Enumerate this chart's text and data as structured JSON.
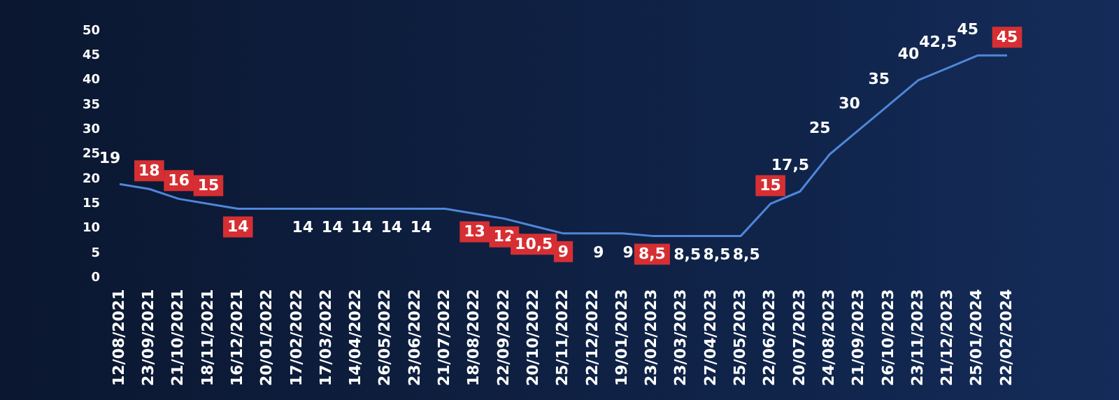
{
  "chart_data": {
    "type": "line",
    "categories": [
      "12/08/2021",
      "23/09/2021",
      "21/10/2021",
      "18/11/2021",
      "16/12/2021",
      "20/01/2022",
      "17/02/2022",
      "17/03/2022",
      "14/04/2022",
      "26/05/2022",
      "23/06/2022",
      "21/07/2022",
      "18/08/2022",
      "22/09/2022",
      "20/10/2022",
      "25/11/2022",
      "22/12/2022",
      "19/01/2023",
      "23/02/2023",
      "23/03/2023",
      "27/04/2023",
      "25/05/2023",
      "22/06/2023",
      "20/07/2023",
      "24/08/2023",
      "21/09/2023",
      "26/10/2023",
      "23/11/2023",
      "21/12/2023",
      "25/01/2024",
      "22/02/2024"
    ],
    "series": [
      {
        "color": "#4f86d9",
        "values": [
          19,
          18,
          16,
          15,
          14,
          14,
          14,
          14,
          14,
          14,
          14,
          14,
          13,
          12,
          10.5,
          9,
          9,
          9,
          8.5,
          8.5,
          8.5,
          8.5,
          15,
          17.5,
          25,
          30,
          35,
          40,
          42.5,
          45,
          45
        ],
        "value_labels": [
          "19",
          null,
          null,
          null,
          null,
          null,
          "14",
          "14",
          "14",
          "14",
          "14",
          null,
          null,
          null,
          null,
          null,
          "9",
          "9",
          null,
          "8,5",
          "8,5",
          "8,5",
          null,
          "17,5",
          "25",
          "30",
          "35",
          "40",
          "42,5",
          "45",
          null
        ]
      }
    ],
    "annotations": [
      {
        "text": "18",
        "x": "23/09/2021",
        "y": 18
      },
      {
        "text": "16",
        "x": "21/10/2021",
        "y": 16
      },
      {
        "text": "15",
        "x": "18/11/2021",
        "y": 15
      },
      {
        "text": "14",
        "x": "16/12/2021",
        "y": 14
      },
      {
        "text": "13",
        "x": "18/08/2022",
        "y": 13
      },
      {
        "text": "12",
        "x": "22/09/2022",
        "y": 12
      },
      {
        "text": "10,5",
        "x": "20/10/2022",
        "y": 10.5
      },
      {
        "text": "9",
        "x": "25/11/2022",
        "y": 9
      },
      {
        "text": "8,5",
        "x": "23/02/2023",
        "y": 8.5
      },
      {
        "text": "15",
        "x": "22/06/2023",
        "y": 15
      },
      {
        "text": "45",
        "x": "22/02/2024",
        "y": 45
      }
    ],
    "ylim": [
      0,
      50
    ],
    "yticks": [
      0,
      5,
      10,
      15,
      20,
      25,
      30,
      35,
      40,
      45,
      50
    ],
    "grid": false,
    "legend": false,
    "marker": "none",
    "line_style": "solid"
  }
}
